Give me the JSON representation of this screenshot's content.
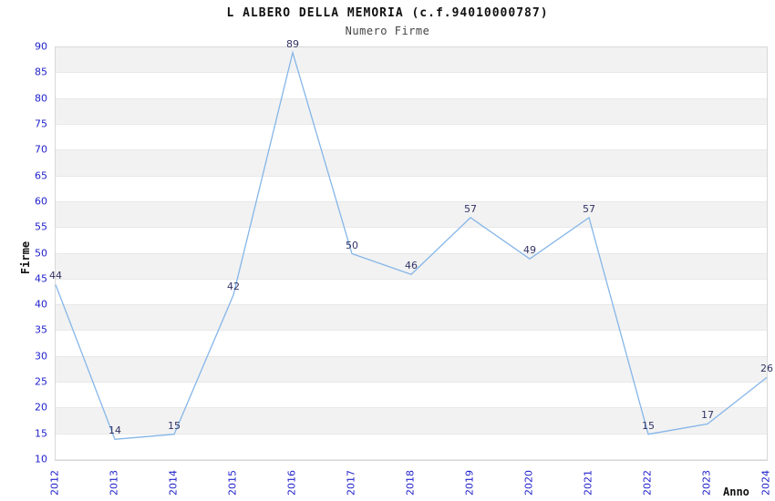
{
  "chart_data": {
    "type": "line",
    "title": "L ALBERO DELLA MEMORIA (c.f.94010000787)",
    "subtitle": "Numero Firme",
    "xlabel": "Anno",
    "ylabel": "Firme",
    "categories": [
      "2012",
      "2013",
      "2014",
      "2015",
      "2016",
      "2017",
      "2018",
      "2019",
      "2020",
      "2021",
      "2022",
      "2023",
      "2024"
    ],
    "series": [
      {
        "name": "Numero Firme",
        "values": [
          44,
          14,
          15,
          42,
          89,
          50,
          46,
          57,
          49,
          57,
          15,
          17,
          26
        ]
      }
    ],
    "ylim": [
      10,
      90
    ],
    "y_ticks": [
      10,
      15,
      20,
      25,
      30,
      35,
      40,
      45,
      50,
      55,
      60,
      65,
      70,
      75,
      80,
      85,
      90
    ],
    "grid": "horizontal-alternating-bands",
    "legend_position": "none",
    "colors": {
      "line": "#85b6e8",
      "tick_label": "#2222cc",
      "data_label": "#333366",
      "band_gray": "#f2f2f2",
      "band_white": "#ffffff",
      "grid_line": "#e8e8e8",
      "plot_border": "#d8d8d8",
      "title": "#111111",
      "subtitle": "#444444",
      "axis_title": "#111111"
    }
  }
}
